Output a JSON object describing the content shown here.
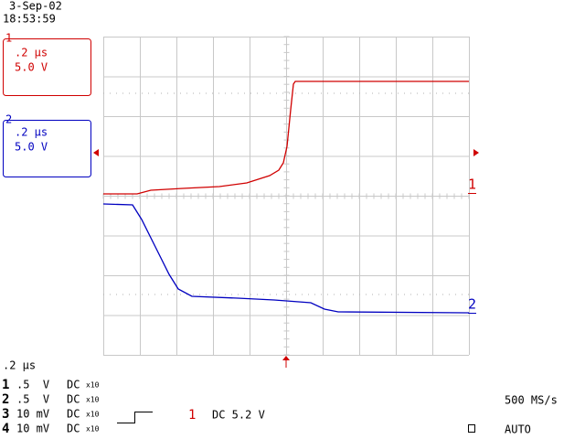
{
  "header": {
    "date": "3-Sep-02",
    "time": "18:53:59"
  },
  "channel_boxes": [
    {
      "number": "1",
      "timebase": ".2 µs",
      "scale": "5.0 V"
    },
    {
      "number": "2",
      "timebase": ".2 µs",
      "scale": "5.0 V"
    }
  ],
  "trace_markers": [
    "1",
    "2"
  ],
  "timebase": ".2 µs",
  "channel_settings": [
    {
      "number": "1",
      "scale": ".5  V",
      "coupling": "DC",
      "probe": "x10"
    },
    {
      "number": "2",
      "scale": ".5  V",
      "coupling": "DC",
      "probe": "x10"
    },
    {
      "number": "3",
      "scale": "10 mV",
      "coupling": "DC",
      "probe": "x10"
    },
    {
      "number": "4",
      "scale": "10 mV",
      "coupling": "DC",
      "probe": "x10"
    }
  ],
  "trigger": {
    "source": "1",
    "setting": "DC 5.2 V"
  },
  "sample_rate": "500 MS/s",
  "mode": "AUTO"
}
